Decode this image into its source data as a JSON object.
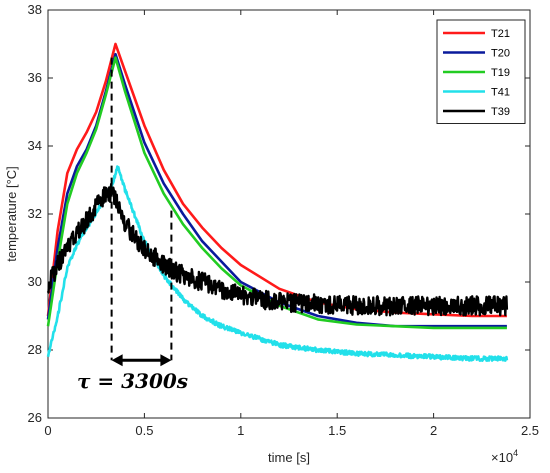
{
  "chart_data": {
    "type": "line",
    "title": "",
    "xlabel": "time [s]",
    "ylabel": "temperature [°C]",
    "x_multiplier_label": "×10",
    "x_multiplier_exp": "4",
    "xlim": [
      0,
      25000
    ],
    "ylim": [
      26,
      38
    ],
    "x_ticks": [
      0,
      5000,
      10000,
      15000,
      20000,
      25000
    ],
    "x_tick_labels": [
      "0",
      "0.5",
      "1",
      "1.5",
      "2",
      "2.5"
    ],
    "y_ticks": [
      26,
      28,
      30,
      32,
      34,
      36,
      38
    ],
    "y_tick_labels": [
      "26",
      "28",
      "30",
      "32",
      "34",
      "36",
      "38"
    ],
    "grid": false,
    "legend_position": "top-right",
    "series": [
      {
        "name": "T21",
        "color": "#ff1a1a",
        "noise": 0,
        "x": [
          0,
          500,
          1000,
          1500,
          2000,
          2500,
          3000,
          3500,
          4000,
          5000,
          6000,
          7000,
          8000,
          9000,
          10000,
          12000,
          14000,
          16000,
          18000,
          20000,
          22000,
          23800
        ],
        "y": [
          29.0,
          31.5,
          33.2,
          33.9,
          34.4,
          35.0,
          35.9,
          37.0,
          36.2,
          34.6,
          33.3,
          32.3,
          31.6,
          31.0,
          30.5,
          29.8,
          29.4,
          29.2,
          29.1,
          29.05,
          29.0,
          29.0
        ]
      },
      {
        "name": "T20",
        "color": "#0a1a9c",
        "noise": 0,
        "x": [
          0,
          500,
          1000,
          1500,
          2000,
          2500,
          3000,
          3500,
          4000,
          5000,
          6000,
          7000,
          8000,
          9000,
          10000,
          12000,
          14000,
          16000,
          18000,
          20000,
          22000,
          23800
        ],
        "y": [
          28.9,
          31.0,
          32.6,
          33.4,
          33.9,
          34.6,
          35.6,
          36.7,
          35.8,
          34.1,
          32.9,
          32.0,
          31.2,
          30.6,
          30.0,
          29.4,
          29.0,
          28.8,
          28.7,
          28.7,
          28.7,
          28.7
        ]
      },
      {
        "name": "T19",
        "color": "#22cc22",
        "noise": 0,
        "x": [
          0,
          500,
          1000,
          1500,
          2000,
          2500,
          3000,
          3500,
          4000,
          5000,
          6000,
          7000,
          8000,
          9000,
          10000,
          12000,
          14000,
          16000,
          18000,
          20000,
          22000,
          23800
        ],
        "y": [
          28.7,
          30.6,
          32.3,
          33.2,
          33.8,
          34.5,
          35.5,
          36.6,
          35.6,
          33.8,
          32.6,
          31.7,
          31.0,
          30.4,
          29.9,
          29.3,
          28.9,
          28.75,
          28.7,
          28.65,
          28.65,
          28.65
        ]
      },
      {
        "name": "T41",
        "color": "#22e0ea",
        "noise": 0.08,
        "x": [
          0,
          500,
          1000,
          1500,
          2000,
          2500,
          3000,
          3300,
          3600,
          4000,
          5000,
          6000,
          7000,
          8000,
          9000,
          10000,
          12000,
          14000,
          16000,
          18000,
          20000,
          22000,
          23800
        ],
        "y": [
          27.8,
          29.0,
          30.4,
          31.1,
          31.6,
          32.0,
          32.6,
          32.8,
          33.4,
          32.7,
          31.2,
          30.2,
          29.5,
          29.0,
          28.7,
          28.5,
          28.15,
          28.0,
          27.9,
          27.85,
          27.8,
          27.75,
          27.75
        ]
      },
      {
        "name": "T39",
        "color": "#000000",
        "noise": 0.35,
        "x": [
          0,
          500,
          1000,
          1500,
          2000,
          2500,
          3000,
          3400,
          3800,
          4500,
          5000,
          6000,
          7000,
          8000,
          9000,
          10000,
          12000,
          14000,
          16000,
          18000,
          20000,
          22000,
          23800
        ],
        "y": [
          29.9,
          30.5,
          31.0,
          31.4,
          31.8,
          32.2,
          32.6,
          32.6,
          31.9,
          31.3,
          31.0,
          30.5,
          30.2,
          30.0,
          29.8,
          29.6,
          29.4,
          29.35,
          29.3,
          29.3,
          29.3,
          29.3,
          29.3
        ]
      }
    ],
    "annotation": {
      "text": "τ = 3300s",
      "x_start": 3300,
      "x_end": 6400,
      "y_level": 27.7,
      "y_top_start": 36.6,
      "y_top_end": 32.1
    }
  }
}
